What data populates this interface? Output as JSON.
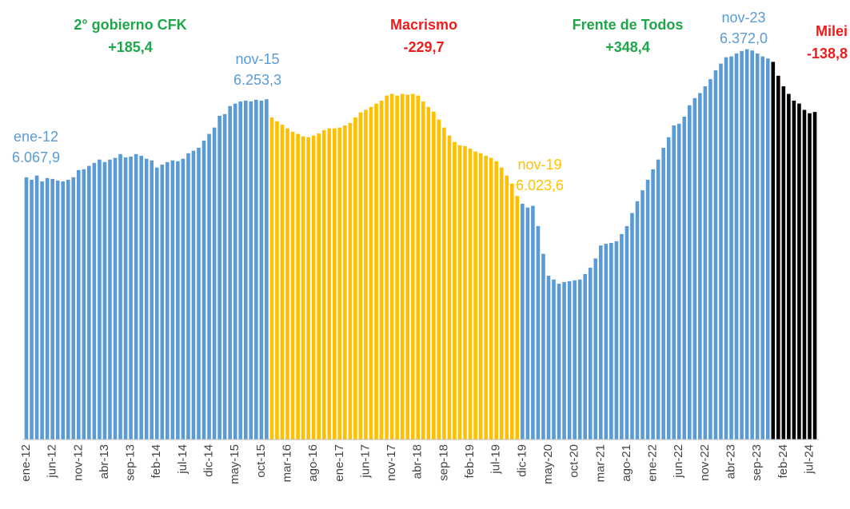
{
  "chart_data": {
    "type": "bar",
    "categories": [
      "ene-12",
      null,
      null,
      null,
      null,
      "jun-12",
      null,
      null,
      null,
      null,
      "nov-12",
      null,
      null,
      null,
      null,
      "abr-13",
      null,
      null,
      null,
      null,
      "sep-13",
      null,
      null,
      null,
      null,
      "feb-14",
      null,
      null,
      null,
      null,
      "jul-14",
      null,
      null,
      null,
      null,
      "dic-14",
      null,
      null,
      null,
      null,
      "may-15",
      null,
      null,
      null,
      null,
      "oct-15",
      null,
      null,
      null,
      null,
      "mar-16",
      null,
      null,
      null,
      null,
      "ago-16",
      null,
      null,
      null,
      null,
      "ene-17",
      null,
      null,
      null,
      null,
      "jun-17",
      null,
      null,
      null,
      null,
      "nov-17",
      null,
      null,
      null,
      null,
      "abr-18",
      null,
      null,
      null,
      null,
      "sep-18",
      null,
      null,
      null,
      null,
      "feb-19",
      null,
      null,
      null,
      null,
      "jul-19",
      null,
      null,
      null,
      null,
      "dic-19",
      null,
      null,
      null,
      null,
      "may-20",
      null,
      null,
      null,
      null,
      "oct-20",
      null,
      null,
      null,
      null,
      "mar-21",
      null,
      null,
      null,
      null,
      "ago-21",
      null,
      null,
      null,
      null,
      "ene-22",
      null,
      null,
      null,
      null,
      "jun-22",
      null,
      null,
      null,
      null,
      "nov-22",
      null,
      null,
      null,
      null,
      "abr-23",
      null,
      null,
      null,
      null,
      "sep-23",
      null,
      null,
      null,
      null,
      "feb-24",
      null,
      null,
      null,
      null,
      "jul-24",
      null
    ],
    "series": [
      {
        "name": "2° gobierno CFK",
        "color": "#5b9bd5",
        "label_color": "#1ea64a",
        "change": {
          "value": 185.4,
          "label": "+185,4"
        },
        "values": [
          6067.9,
          6062,
          6072,
          6058,
          6066,
          6064,
          6060,
          6058,
          6062,
          6068,
          6085,
          6087,
          6095,
          6102,
          6110,
          6104,
          6110,
          6114,
          6123,
          6115,
          6117,
          6123,
          6119,
          6112,
          6108,
          6091,
          6098,
          6104,
          6108,
          6106,
          6112,
          6125,
          6131,
          6138,
          6155,
          6171,
          6186,
          6214,
          6218,
          6237,
          6243,
          6248,
          6250,
          6248,
          6252,
          6250,
          6253.3,
          null,
          null,
          null,
          null,
          null,
          null,
          null,
          null,
          null,
          null,
          null,
          null,
          null,
          null,
          null,
          null,
          null,
          null,
          null,
          null,
          null,
          null,
          null,
          null,
          null,
          null,
          null,
          null,
          null,
          null,
          null,
          null,
          null,
          null,
          null,
          null,
          null,
          null,
          null,
          null,
          null,
          null,
          null,
          null,
          null,
          null,
          null,
          null,
          null,
          null,
          null,
          null,
          null,
          null,
          null,
          null,
          null,
          null,
          null,
          null,
          null,
          null,
          null,
          null,
          null,
          null,
          null,
          null,
          null,
          null,
          null,
          null,
          null,
          null,
          null,
          null,
          null,
          null,
          null,
          null,
          null,
          null,
          null,
          null,
          null,
          null,
          null,
          null,
          null,
          null,
          null,
          null,
          null,
          null,
          null,
          null,
          null,
          null,
          null,
          null,
          null,
          null,
          null,
          null,
          null
        ]
      },
      {
        "name": "Macrismo",
        "color": "#ffc000",
        "label_color": "#ee1c1c",
        "change": {
          "value": -229.7,
          "label": "-229,7"
        },
        "values": [
          null,
          null,
          null,
          null,
          null,
          null,
          null,
          null,
          null,
          null,
          null,
          null,
          null,
          null,
          null,
          null,
          null,
          null,
          null,
          null,
          null,
          null,
          null,
          null,
          null,
          null,
          null,
          null,
          null,
          null,
          null,
          null,
          null,
          null,
          null,
          null,
          null,
          null,
          null,
          null,
          null,
          null,
          null,
          null,
          null,
          null,
          null,
          6210,
          6201,
          6193,
          6184,
          6176,
          6171,
          6165,
          6163,
          6167,
          6172,
          6180,
          6184,
          6184,
          6186,
          6191,
          6197,
          6210,
          6222,
          6228,
          6235,
          6243,
          6250,
          6262,
          6266,
          6262,
          6266,
          6264,
          6266,
          6262,
          6248,
          6235,
          6224,
          6205,
          6186,
          6167,
          6152,
          6144,
          6142,
          6136,
          6129,
          6125,
          6119,
          6114,
          6106,
          6091,
          6072,
          6053,
          6023.6,
          null,
          null,
          null,
          null,
          null,
          null,
          null,
          null,
          null,
          null,
          null,
          null,
          null,
          null,
          null,
          null,
          null,
          null,
          null,
          null,
          null,
          null,
          null,
          null,
          null,
          null,
          null,
          null,
          null,
          null,
          null,
          null,
          null,
          null,
          null,
          null,
          null,
          null,
          null,
          null,
          null,
          null,
          null,
          null,
          null,
          null,
          null,
          null,
          null,
          null,
          null,
          null,
          null,
          null,
          null,
          null,
          null
        ]
      },
      {
        "name": "Frente de Todos",
        "color": "#5b9bd5",
        "label_color": "#1ea64a",
        "change": {
          "value": 348.4,
          "label": "+348,4"
        },
        "values": [
          null,
          null,
          null,
          null,
          null,
          null,
          null,
          null,
          null,
          null,
          null,
          null,
          null,
          null,
          null,
          null,
          null,
          null,
          null,
          null,
          null,
          null,
          null,
          null,
          null,
          null,
          null,
          null,
          null,
          null,
          null,
          null,
          null,
          null,
          null,
          null,
          null,
          null,
          null,
          null,
          null,
          null,
          null,
          null,
          null,
          null,
          null,
          null,
          null,
          null,
          null,
          null,
          null,
          null,
          null,
          null,
          null,
          null,
          null,
          null,
          null,
          null,
          null,
          null,
          null,
          null,
          null,
          null,
          null,
          null,
          null,
          null,
          null,
          null,
          null,
          null,
          null,
          null,
          null,
          null,
          null,
          null,
          null,
          null,
          null,
          null,
          null,
          null,
          null,
          null,
          null,
          null,
          null,
          null,
          null,
          6005,
          5996,
          6000,
          5952,
          5886,
          5834,
          5825,
          5815,
          5819,
          5821,
          5823,
          5825,
          5838,
          5853,
          5875,
          5906,
          5910,
          5912,
          5916,
          5933,
          5952,
          5983,
          6011,
          6037,
          6062,
          6087,
          6110,
          6138,
          6163,
          6191,
          6195,
          6212,
          6239,
          6256,
          6268,
          6284,
          6301,
          6322,
          6338,
          6353,
          6355,
          6362,
          6368,
          6372.0,
          6369,
          6362,
          6355,
          6350,
          null,
          null,
          null,
          null,
          null,
          null,
          null,
          null,
          null
        ]
      },
      {
        "name": "Milei",
        "color": "#000000",
        "label_color": "#ee1c1c",
        "change": {
          "value": -138.8,
          "label": "-138,8"
        },
        "values": [
          null,
          null,
          null,
          null,
          null,
          null,
          null,
          null,
          null,
          null,
          null,
          null,
          null,
          null,
          null,
          null,
          null,
          null,
          null,
          null,
          null,
          null,
          null,
          null,
          null,
          null,
          null,
          null,
          null,
          null,
          null,
          null,
          null,
          null,
          null,
          null,
          null,
          null,
          null,
          null,
          null,
          null,
          null,
          null,
          null,
          null,
          null,
          null,
          null,
          null,
          null,
          null,
          null,
          null,
          null,
          null,
          null,
          null,
          null,
          null,
          null,
          null,
          null,
          null,
          null,
          null,
          null,
          null,
          null,
          null,
          null,
          null,
          null,
          null,
          null,
          null,
          null,
          null,
          null,
          null,
          null,
          null,
          null,
          null,
          null,
          null,
          null,
          null,
          null,
          null,
          null,
          null,
          null,
          null,
          null,
          null,
          null,
          null,
          null,
          null,
          null,
          null,
          null,
          null,
          null,
          null,
          null,
          null,
          null,
          null,
          null,
          null,
          null,
          null,
          null,
          null,
          null,
          null,
          null,
          null,
          null,
          null,
          null,
          null,
          null,
          null,
          null,
          null,
          null,
          null,
          null,
          null,
          null,
          null,
          null,
          null,
          null,
          null,
          null,
          null,
          null,
          null,
          null,
          6342,
          6309,
          6284,
          6266,
          6250,
          6243,
          6228,
          6220,
          6223
        ]
      }
    ],
    "annotations": [
      {
        "text": "ene-12",
        "value": {
          "value": 6067.9,
          "label": "6.067,9"
        },
        "color": "#5b9bd5"
      },
      {
        "text": "nov-15",
        "value": {
          "value": 6253.3,
          "label": "6.253,3"
        },
        "color": "#5b9bd5"
      },
      {
        "text": "nov-19",
        "value": {
          "value": 6023.6,
          "label": "6.023,6"
        },
        "color": "#ffc000"
      },
      {
        "text": "nov-23",
        "value": {
          "value": 6372.0,
          "label": "6.372,0"
        },
        "color": "#5b9bd5"
      }
    ],
    "ylim": [
      5445,
      6415
    ]
  }
}
